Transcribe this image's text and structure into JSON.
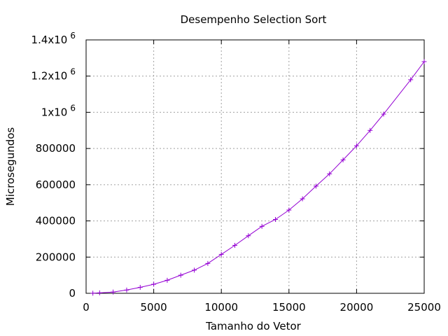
{
  "chart_data": {
    "type": "line",
    "title": "Desempenho Selection Sort",
    "xlabel": "Tamanho do Vetor",
    "ylabel": "Microsegundos",
    "xlim": [
      0,
      25000
    ],
    "ylim": [
      0,
      1400000
    ],
    "x_ticks": [
      0,
      5000,
      10000,
      15000,
      20000,
      25000
    ],
    "x_tick_labels": [
      "0",
      "5000",
      "10000",
      "15000",
      "20000",
      "25000"
    ],
    "y_ticks": [
      {
        "value": 0,
        "mantissa": "0",
        "exponent": ""
      },
      {
        "value": 200000,
        "mantissa": "200000",
        "exponent": ""
      },
      {
        "value": 400000,
        "mantissa": "400000",
        "exponent": ""
      },
      {
        "value": 600000,
        "mantissa": "600000",
        "exponent": ""
      },
      {
        "value": 800000,
        "mantissa": "800000",
        "exponent": ""
      },
      {
        "value": 1000000,
        "mantissa": "1x10",
        "exponent": "6"
      },
      {
        "value": 1200000,
        "mantissa": "1.2x10",
        "exponent": "6"
      },
      {
        "value": 1400000,
        "mantissa": "1.4x10",
        "exponent": "6"
      }
    ],
    "grid": true,
    "marker": "+",
    "series": [
      {
        "color": "#9400d3",
        "x": [
          500,
          1000,
          2000,
          3000,
          4000,
          5000,
          6000,
          7000,
          8000,
          9000,
          10000,
          11000,
          12000,
          13000,
          14000,
          15000,
          16000,
          17000,
          18000,
          19000,
          20000,
          21000,
          22000,
          24000,
          25000
        ],
        "y": [
          500,
          2500,
          7000,
          18000,
          33000,
          50000,
          72000,
          100000,
          128000,
          165000,
          215000,
          265000,
          318000,
          370000,
          408000,
          460000,
          522000,
          592000,
          660000,
          737000,
          815000,
          900000,
          990000,
          1180000,
          1280000
        ]
      }
    ]
  }
}
